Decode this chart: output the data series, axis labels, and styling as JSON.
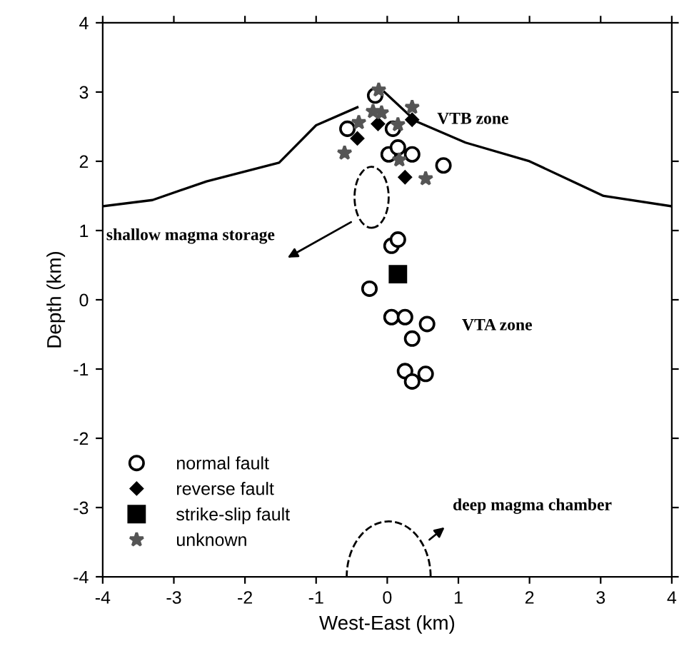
{
  "chart_data": {
    "type": "scatter",
    "xlabel": "West-East (km)",
    "ylabel": "Depth (km)",
    "xlim": [
      -4,
      4
    ],
    "ylim": [
      -4,
      4
    ],
    "xticks": [
      -4,
      -3,
      -2,
      -1,
      0,
      1,
      2,
      3,
      4
    ],
    "yticks": [
      -4,
      -3,
      -2,
      -1,
      0,
      1,
      2,
      3,
      4
    ],
    "grid": false,
    "legend": "bottom left",
    "series": [
      {
        "type": "line",
        "color": "#000000",
        "marker": "none",
        "line_style": "solid",
        "x": [
          -4,
          -3.3,
          -2.54,
          -1.52,
          -1.0,
          -0.42
        ],
        "values": [
          1.35,
          1.44,
          1.71,
          1.98,
          2.52,
          2.78
        ]
      },
      {
        "type": "line",
        "color": "#000000",
        "marker": "none",
        "line_style": "solid",
        "x": [
          -0.04,
          0.4,
          1.1,
          2.0,
          3.04,
          4
        ],
        "values": [
          3.0,
          2.58,
          2.27,
          2.0,
          1.5,
          1.35
        ]
      },
      {
        "name": "normal fault",
        "color": "#000000",
        "marker": "circle",
        "x": [
          -0.56,
          -0.17,
          0.08,
          0.02,
          0.15,
          0.35,
          0.79,
          0.06,
          0.15,
          -0.25,
          0.06,
          0.25,
          0.56,
          0.35,
          0.25,
          0.54,
          0.35
        ],
        "values": [
          2.47,
          2.95,
          2.47,
          2.1,
          2.2,
          2.1,
          1.94,
          0.78,
          0.87,
          0.16,
          -0.25,
          -0.25,
          -0.35,
          -0.56,
          -1.03,
          -1.07,
          -1.18
        ]
      },
      {
        "name": "reverse fault",
        "color": "#000000",
        "marker": "diamond",
        "x": [
          -0.42,
          -0.13,
          0.35,
          0.25
        ],
        "values": [
          2.33,
          2.54,
          2.6,
          1.77
        ]
      },
      {
        "name": "strike-slip fault",
        "color": "#000000",
        "marker": "square",
        "x": [
          0.15
        ],
        "values": [
          0.37
        ]
      },
      {
        "name": "unknown",
        "color": "#555555",
        "marker": "star",
        "x": [
          -0.6,
          -0.4,
          -0.12,
          -0.08,
          0.15,
          0.35,
          0.17,
          0.54,
          -0.2
        ],
        "values": [
          2.12,
          2.56,
          3.03,
          2.7,
          2.53,
          2.78,
          2.02,
          1.75,
          2.72
        ]
      }
    ],
    "annotations": [
      "VTB zone",
      "shallow magma storage",
      "VTA zone",
      "deep magma chamber"
    ]
  }
}
